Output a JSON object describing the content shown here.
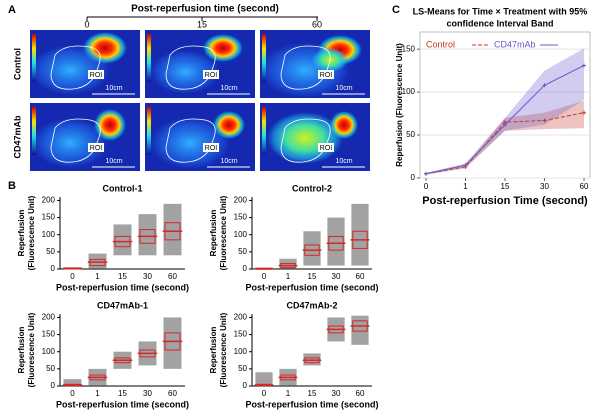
{
  "panel_labels": [
    "A",
    "B",
    "C"
  ],
  "panel_a": {
    "title": "Post-reperfusion time (second)",
    "columns": [
      "0",
      "15",
      "60"
    ],
    "rows": [
      "Control",
      "CD47mAb"
    ],
    "roi_label": "ROI",
    "scale_label": "10cm"
  },
  "chart_data": [
    {
      "type": "box",
      "title": "Control-1",
      "xlabel": "Post-reperfusion time (second)",
      "ylabel": [
        "Reperfusion",
        "(Fluorescence Unit)"
      ],
      "categories": [
        "0",
        "1",
        "15",
        "30",
        "60"
      ],
      "values": [
        2,
        20,
        80,
        95,
        110
      ],
      "q1": [
        1,
        10,
        65,
        75,
        85
      ],
      "q3": [
        3,
        28,
        95,
        115,
        135
      ],
      "low": [
        0,
        0,
        40,
        40,
        40
      ],
      "high": [
        5,
        45,
        130,
        160,
        190
      ],
      "color": "#d62728",
      "ylim": [
        0,
        210
      ],
      "yticks": [
        0,
        50,
        100,
        150,
        200
      ]
    },
    {
      "type": "box",
      "title": "Control-2",
      "xlabel": "Post-reperfusion time (second)",
      "ylabel": [
        "Reperfusion",
        "(Fluorescence Unit)"
      ],
      "categories": [
        "0",
        "1",
        "15",
        "30",
        "60"
      ],
      "values": [
        1,
        10,
        55,
        75,
        85
      ],
      "q1": [
        0,
        4,
        40,
        55,
        60
      ],
      "q3": [
        2,
        16,
        70,
        95,
        110
      ],
      "low": [
        0,
        0,
        10,
        10,
        10
      ],
      "high": [
        4,
        30,
        110,
        150,
        190
      ],
      "color": "#d62728",
      "ylim": [
        0,
        210
      ],
      "yticks": [
        0,
        50,
        100,
        150,
        200
      ]
    },
    {
      "type": "box",
      "title": "CD47mAb-1",
      "xlabel": "Post-reperfusion time (second)",
      "ylabel": [
        "Reperfusion",
        "(Fluorescence Unit)"
      ],
      "categories": [
        "0",
        "1",
        "15",
        "30",
        "60"
      ],
      "values": [
        3,
        25,
        75,
        95,
        130
      ],
      "q1": [
        1,
        18,
        68,
        85,
        105
      ],
      "q3": [
        5,
        32,
        82,
        105,
        155
      ],
      "low": [
        0,
        0,
        50,
        60,
        50
      ],
      "high": [
        20,
        50,
        100,
        130,
        200
      ],
      "color": "#d62728",
      "ylim": [
        0,
        210
      ],
      "yticks": [
        0,
        50,
        100,
        150,
        200
      ]
    },
    {
      "type": "box",
      "title": "CD47mAb-2",
      "xlabel": "Post-reperfusion time (second)",
      "ylabel": [
        "Reperfusion",
        "(Fluorescence Unit)"
      ],
      "categories": [
        "0",
        "1",
        "15",
        "30",
        "60"
      ],
      "values": [
        3,
        25,
        75,
        165,
        175
      ],
      "q1": [
        1,
        18,
        68,
        155,
        160
      ],
      "q3": [
        5,
        32,
        82,
        175,
        190
      ],
      "low": [
        0,
        0,
        60,
        130,
        120
      ],
      "high": [
        40,
        50,
        95,
        200,
        205
      ],
      "color": "#d62728",
      "ylim": [
        0,
        210
      ],
      "yticks": [
        0,
        50,
        100,
        150,
        200
      ]
    },
    {
      "type": "line",
      "title": [
        "LS-Means for Time ×  Treatment with 95%",
        "confidence Interval Band"
      ],
      "xlabel": "Post-reperfusion Time (second)",
      "ylabel": "Reperfusion (Fluorescence Unit)",
      "categories": [
        "0",
        "1",
        "15",
        "30",
        "60"
      ],
      "series": [
        {
          "name": "Control",
          "color": "#c0392b",
          "dashed": true,
          "values": [
            5,
            13,
            65,
            67,
            76
          ],
          "lower": [
            4,
            11,
            55,
            57,
            58
          ],
          "upper": [
            6,
            15,
            70,
            76,
            90
          ]
        },
        {
          "name": "CD47mAb",
          "color": "#6a5acd",
          "dashed": false,
          "values": [
            5,
            15,
            62,
            108,
            131
          ],
          "lower": [
            4,
            13,
            55,
            62,
            91
          ],
          "upper": [
            6,
            17,
            70,
            125,
            151
          ]
        }
      ],
      "ylim": [
        0,
        170
      ],
      "yticks": [
        0,
        50,
        100,
        150
      ],
      "grid": true,
      "legend": "top-left"
    }
  ]
}
